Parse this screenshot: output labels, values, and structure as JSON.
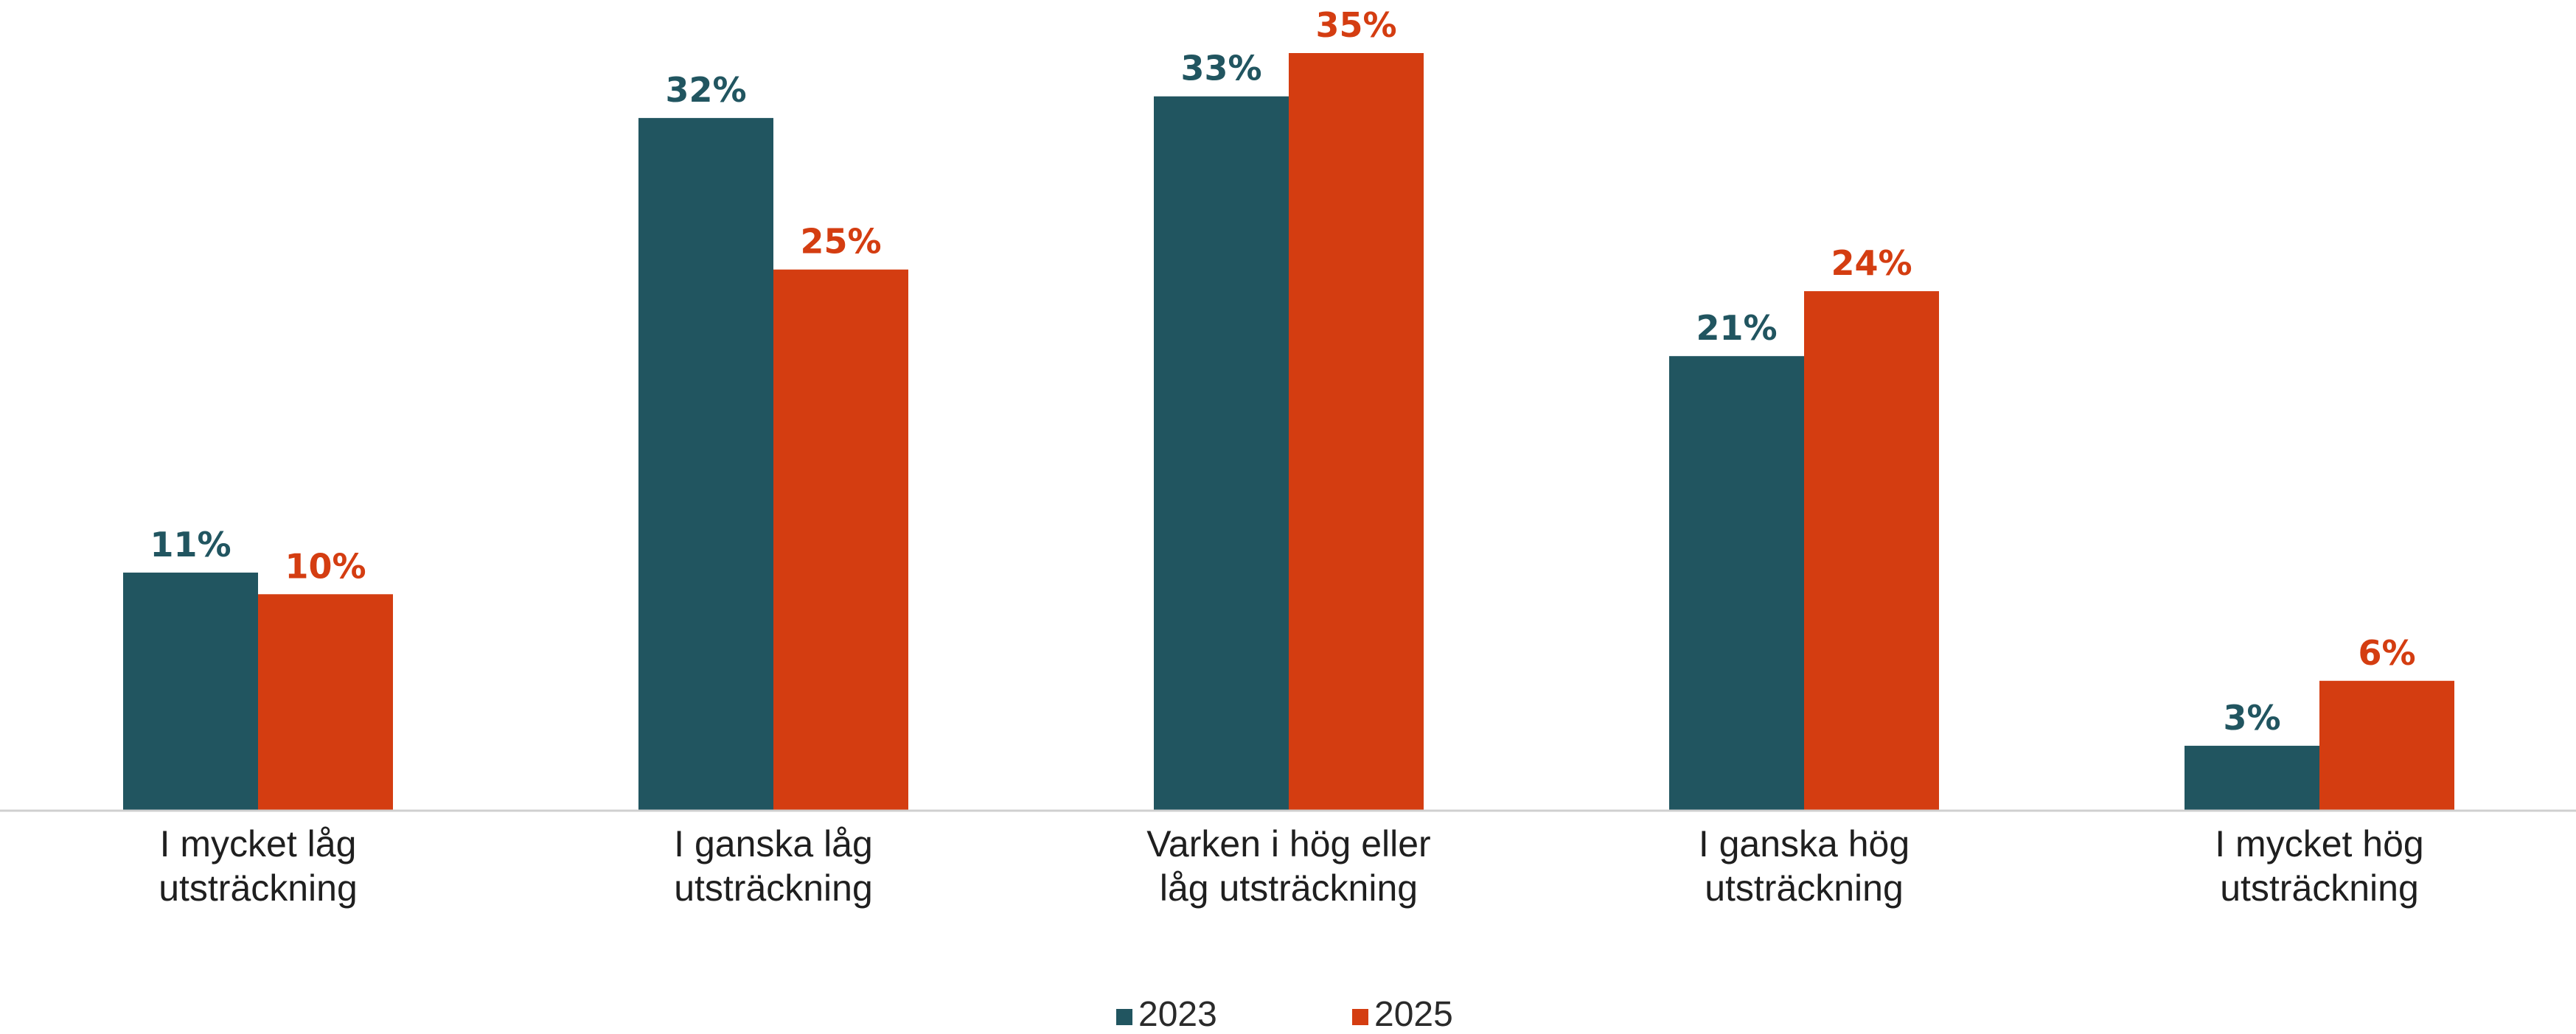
{
  "chart_data": {
    "type": "bar",
    "categories": [
      [
        "I mycket låg",
        "utsträckning"
      ],
      [
        "I ganska låg",
        "utsträckning"
      ],
      [
        "Varken i hög eller",
        "låg utsträckning"
      ],
      [
        "I ganska hög",
        "utsträckning"
      ],
      [
        "I mycket hög",
        "utsträckning"
      ]
    ],
    "series": [
      {
        "name": "2023",
        "color": "#215560",
        "values": [
          11,
          32,
          33,
          21,
          3
        ],
        "labels": [
          "11%",
          "32%",
          "33%",
          "21%",
          "3%"
        ]
      },
      {
        "name": "2025",
        "color": "#D43D11",
        "values": [
          10,
          25,
          35,
          24,
          6
        ],
        "labels": [
          "10%",
          "25%",
          "35%",
          "24%",
          "6%"
        ]
      }
    ],
    "ylim": [
      0,
      35
    ],
    "grid": false,
    "legend": "bottom-center"
  }
}
